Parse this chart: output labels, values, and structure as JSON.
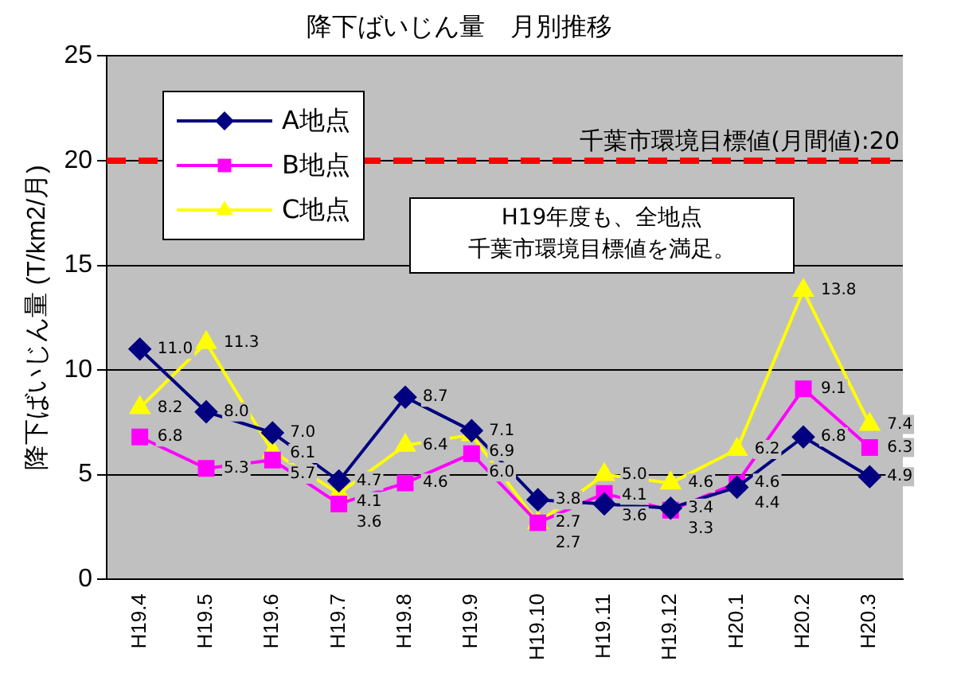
{
  "chart_data": {
    "type": "line",
    "title": "降下ばいじん量　月別推移",
    "ylabel": "降下ばいじん量 (T/km2/月)",
    "categories": [
      "H19.4",
      "H19.5",
      "H19.6",
      "H19.7",
      "H19.8",
      "H19.9",
      "H19.10",
      "H19.11",
      "H19.12",
      "H20.1",
      "H20.2",
      "H20.3"
    ],
    "series": [
      {
        "name": "A地点",
        "color": "#000080",
        "marker": "diamond",
        "values": [
          11.0,
          8.0,
          7.0,
          4.7,
          8.7,
          7.1,
          3.8,
          3.6,
          3.4,
          4.4,
          6.8,
          4.9
        ],
        "value_labels": [
          "11.0",
          "8.0",
          "7.0",
          "4.7",
          "8.7",
          "7.1",
          "3.8",
          "3.6",
          "3.4",
          "4.4",
          "6.8",
          "4.9"
        ]
      },
      {
        "name": "B地点",
        "color": "#ff00ff",
        "marker": "square",
        "values": [
          6.8,
          5.3,
          5.7,
          3.6,
          4.6,
          6.0,
          2.7,
          4.1,
          3.3,
          4.6,
          9.1,
          6.3
        ],
        "value_labels": [
          "6.8",
          "5.3",
          "5.7",
          "3.6",
          "4.6",
          "6.0",
          "2.7",
          "4.1",
          "3.3",
          "4.6",
          "9.1",
          "6.3"
        ]
      },
      {
        "name": "C地点",
        "color": "#ffff00",
        "marker": "triangle",
        "values": [
          8.2,
          11.3,
          6.1,
          4.1,
          6.4,
          6.9,
          2.7,
          5.0,
          4.6,
          6.2,
          13.8,
          7.4
        ],
        "value_labels": [
          "8.2",
          "11.3",
          "6.1",
          "4.1",
          "6.4",
          "6.9",
          "2.7",
          "5.0",
          "4.6",
          "6.2",
          "13.8",
          "7.4"
        ]
      }
    ],
    "ylim": [
      0,
      25
    ],
    "yticks": [
      0,
      5,
      10,
      15,
      20,
      25
    ],
    "grid": "y",
    "legend": "top left",
    "ref_lines": [
      {
        "axis": "y",
        "value": 20,
        "label": "千葉市環境目標値(月間値):20",
        "color": "#ff0000",
        "line_style": "dashed"
      }
    ],
    "annotations": [
      "H19年度も、全地点",
      "千葉市環境目標値を満足。"
    ]
  }
}
